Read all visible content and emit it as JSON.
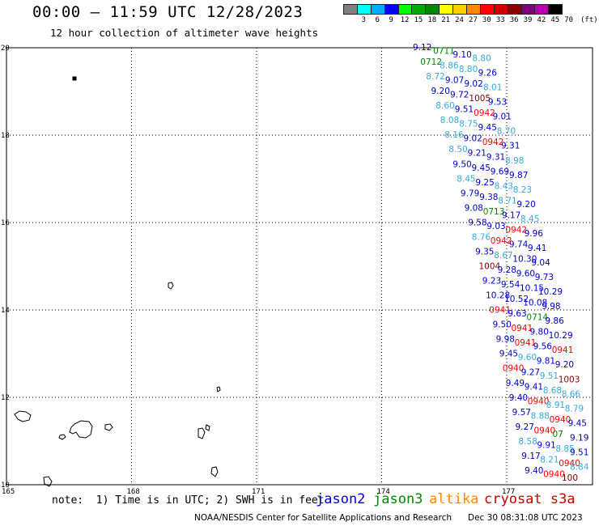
{
  "header": {
    "title": "00:00 — 11:59 UTC 12/28/2023",
    "subtitle": "12 hour collection of altimeter wave heights"
  },
  "colorbar": {
    "colors": [
      "#808080",
      "#00ffff",
      "#00aaff",
      "#0000ff",
      "#00ff00",
      "#00aa00",
      "#008800",
      "#ffff00",
      "#ffcc00",
      "#ff8800",
      "#ff0000",
      "#cc0000",
      "#880000",
      "#800080",
      "#b000b0",
      "#000000"
    ],
    "labels": [
      "",
      "3",
      "6",
      "9",
      "12",
      "15",
      "18",
      "21",
      "24",
      "27",
      "30",
      "33",
      "36",
      "39",
      "42",
      "45",
      "70"
    ],
    "unit": "(ft)"
  },
  "axes": {
    "lat_ticks": [
      "20",
      "18",
      "16",
      "14",
      "12",
      "10"
    ],
    "lon_ticks": [
      "165",
      "168",
      "171",
      "174",
      "177"
    ]
  },
  "footer": {
    "note": "note:  1) Time is in UTC; 2) SWH is in feet",
    "credit": "NOAA/NESDIS Center for Satellite Applications and Research",
    "timestamp": "Dec 30 08:31:08 UTC 2023"
  },
  "legend": [
    {
      "label": "jason2",
      "color": "#0000cc"
    },
    {
      "label": "jason3",
      "color": "#008800"
    },
    {
      "label": "altika",
      "color": "#ff8800"
    },
    {
      "label": "cryosat s3a",
      "color": "#cc0000"
    }
  ],
  "observations": [
    {
      "text": "9.12",
      "color": "#0000cc"
    },
    {
      "text": "0711",
      "color": "#008800"
    },
    {
      "text": "9.10",
      "color": "#0000cc"
    },
    {
      "text": "8.80",
      "color": "#33aadd"
    },
    {
      "text": "0712",
      "color": "#008800"
    },
    {
      "text": "8.86",
      "color": "#33aadd"
    },
    {
      "text": "8.80",
      "color": "#33aadd"
    },
    {
      "text": "9.26",
      "color": "#0000cc"
    },
    {
      "text": "8.72",
      "color": "#33aadd"
    },
    {
      "text": "9.07",
      "color": "#0000cc"
    },
    {
      "text": "9.02",
      "color": "#0000cc"
    },
    {
      "text": "8.01",
      "color": "#33aadd"
    },
    {
      "text": "9.20",
      "color": "#0000cc"
    },
    {
      "text": "9.72",
      "color": "#0000cc"
    },
    {
      "text": "1005",
      "color": "#880000"
    },
    {
      "text": "9.53",
      "color": "#0000cc"
    },
    {
      "text": "8.60",
      "color": "#33aadd"
    },
    {
      "text": "9.51",
      "color": "#0000cc"
    },
    {
      "text": "0942",
      "color": "#ff0000"
    },
    {
      "text": "9.01",
      "color": "#0000cc"
    },
    {
      "text": "8.08",
      "color": "#33aadd"
    },
    {
      "text": "8.75",
      "color": "#33aadd"
    },
    {
      "text": "9.45",
      "color": "#0000cc"
    },
    {
      "text": "8.70",
      "color": "#33aadd"
    },
    {
      "text": "8.16",
      "color": "#33aadd"
    },
    {
      "text": "9.02",
      "color": "#0000cc"
    },
    {
      "text": "0942",
      "color": "#ff0000"
    },
    {
      "text": "9.31",
      "color": "#0000cc"
    },
    {
      "text": "8.50",
      "color": "#33aadd"
    },
    {
      "text": "9.21",
      "color": "#0000cc"
    },
    {
      "text": "9.31",
      "color": "#0000cc"
    },
    {
      "text": "8.98",
      "color": "#33aadd"
    },
    {
      "text": "9.50",
      "color": "#0000cc"
    },
    {
      "text": "9.45",
      "color": "#0000cc"
    },
    {
      "text": "9.69",
      "color": "#0000cc"
    },
    {
      "text": "9.87",
      "color": "#0000cc"
    },
    {
      "text": "8.45",
      "color": "#33aadd"
    },
    {
      "text": "9.25",
      "color": "#0000cc"
    },
    {
      "text": "8.43",
      "color": "#33aadd"
    },
    {
      "text": "8.23",
      "color": "#33aadd"
    },
    {
      "text": "9.79",
      "color": "#0000cc"
    },
    {
      "text": "9.38",
      "color": "#0000cc"
    },
    {
      "text": "8.71",
      "color": "#33aadd"
    },
    {
      "text": "9.20",
      "color": "#0000cc"
    },
    {
      "text": "9.08",
      "color": "#0000cc"
    },
    {
      "text": "0713",
      "color": "#008800"
    },
    {
      "text": "9.17",
      "color": "#0000cc"
    },
    {
      "text": "8.45",
      "color": "#33aadd"
    },
    {
      "text": "9.58",
      "color": "#0000cc"
    },
    {
      "text": "9.03",
      "color": "#0000cc"
    },
    {
      "text": "0942",
      "color": "#ff0000"
    },
    {
      "text": "9.96",
      "color": "#0000cc"
    },
    {
      "text": "8.76",
      "color": "#33aadd"
    },
    {
      "text": "0942",
      "color": "#ff0000"
    },
    {
      "text": "9.74",
      "color": "#0000cc"
    },
    {
      "text": "9.41",
      "color": "#0000cc"
    },
    {
      "text": "9.35",
      "color": "#0000cc"
    },
    {
      "text": "8.67",
      "color": "#33aadd"
    },
    {
      "text": "10.30",
      "color": "#0000cc"
    },
    {
      "text": "9.04",
      "color": "#0000cc"
    },
    {
      "text": "1004",
      "color": "#880000"
    },
    {
      "text": "9.28",
      "color": "#0000cc"
    },
    {
      "text": "9.60",
      "color": "#0000cc"
    },
    {
      "text": "9.73",
      "color": "#0000cc"
    },
    {
      "text": "9.23",
      "color": "#0000cc"
    },
    {
      "text": "9.54",
      "color": "#0000cc"
    },
    {
      "text": "10.15",
      "color": "#0000cc"
    },
    {
      "text": "10.29",
      "color": "#0000cc"
    },
    {
      "text": "10.28",
      "color": "#0000cc"
    },
    {
      "text": "10.52",
      "color": "#0000cc"
    },
    {
      "text": "10.08",
      "color": "#0000cc"
    },
    {
      "text": "9.98",
      "color": "#0000cc"
    },
    {
      "text": "0941",
      "color": "#ff0000"
    },
    {
      "text": "9.63",
      "color": "#0000cc"
    },
    {
      "text": "0714",
      "color": "#008800"
    },
    {
      "text": "9.86",
      "color": "#0000cc"
    },
    {
      "text": "9.50",
      "color": "#0000cc"
    },
    {
      "text": "0941",
      "color": "#ff0000"
    },
    {
      "text": "9.80",
      "color": "#0000cc"
    },
    {
      "text": "10.29",
      "color": "#0000cc"
    },
    {
      "text": "9.98",
      "color": "#0000cc"
    },
    {
      "text": "0941",
      "color": "#ff0000"
    },
    {
      "text": "9.56",
      "color": "#0000cc"
    },
    {
      "text": "0941",
      "color": "#ff0000"
    },
    {
      "text": "9.45",
      "color": "#0000cc"
    },
    {
      "text": "9.60",
      "color": "#33aadd"
    },
    {
      "text": "9.81",
      "color": "#0000cc"
    },
    {
      "text": "9.20",
      "color": "#0000cc"
    },
    {
      "text": "0940",
      "color": "#ff0000"
    },
    {
      "text": "9.27",
      "color": "#0000cc"
    },
    {
      "text": "9.51",
      "color": "#33aadd"
    },
    {
      "text": "1003",
      "color": "#880000"
    },
    {
      "text": "9.49",
      "color": "#0000cc"
    },
    {
      "text": "9.41",
      "color": "#0000cc"
    },
    {
      "text": "8.68",
      "color": "#33aadd"
    },
    {
      "text": "8.66",
      "color": "#33aadd"
    },
    {
      "text": "9.40",
      "color": "#0000cc"
    },
    {
      "text": "0940",
      "color": "#ff0000"
    },
    {
      "text": "8.91",
      "color": "#33aadd"
    },
    {
      "text": "8.79",
      "color": "#33aadd"
    },
    {
      "text": "9.57",
      "color": "#0000cc"
    },
    {
      "text": "8.88",
      "color": "#33aadd"
    },
    {
      "text": "0940",
      "color": "#ff0000"
    },
    {
      "text": "9.45",
      "color": "#0000cc"
    },
    {
      "text": "9.27",
      "color": "#0000cc"
    },
    {
      "text": "0940",
      "color": "#ff0000"
    },
    {
      "text": "07",
      "color": "#008800"
    },
    {
      "text": "9.19",
      "color": "#0000cc"
    },
    {
      "text": "8.58",
      "color": "#33aadd"
    },
    {
      "text": "9.91",
      "color": "#0000cc"
    },
    {
      "text": "8.85",
      "color": "#33aadd"
    },
    {
      "text": "9.51",
      "color": "#0000cc"
    },
    {
      "text": "9.17",
      "color": "#0000cc"
    },
    {
      "text": "8.21",
      "color": "#33aadd"
    },
    {
      "text": "0940",
      "color": "#ff0000"
    },
    {
      "text": "8.84",
      "color": "#33aadd"
    },
    {
      "text": "9.40",
      "color": "#0000cc"
    },
    {
      "text": "0940",
      "color": "#ff0000"
    },
    {
      "text": "100",
      "color": "#880000"
    }
  ]
}
